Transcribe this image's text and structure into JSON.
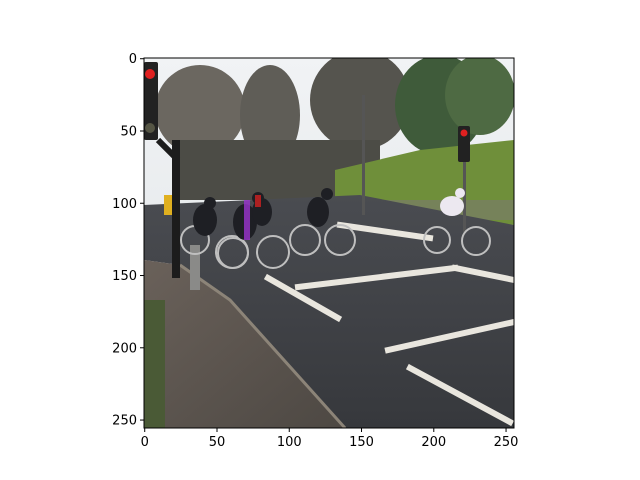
{
  "figure": {
    "background": "#ffffff",
    "image_description_colors": {
      "sky": "#e8ecef",
      "road": "#3d3f44",
      "hedge": "#6f8f3a",
      "trees": "#5a5a52",
      "pavement": "#5b5550",
      "road_marking": "#e9e6de"
    },
    "x_ticks": [
      {
        "value": 0,
        "label": "0"
      },
      {
        "value": 50,
        "label": "50"
      },
      {
        "value": 100,
        "label": "100"
      },
      {
        "value": 150,
        "label": "150"
      },
      {
        "value": 200,
        "label": "200"
      },
      {
        "value": 250,
        "label": "250"
      }
    ],
    "y_ticks": [
      {
        "value": 0,
        "label": "0"
      },
      {
        "value": 50,
        "label": "50"
      },
      {
        "value": 100,
        "label": "100"
      },
      {
        "value": 150,
        "label": "150"
      },
      {
        "value": 200,
        "label": "200"
      },
      {
        "value": 250,
        "label": "250"
      }
    ],
    "xlim": [
      0,
      256
    ],
    "ylim": [
      256,
      0
    ]
  }
}
